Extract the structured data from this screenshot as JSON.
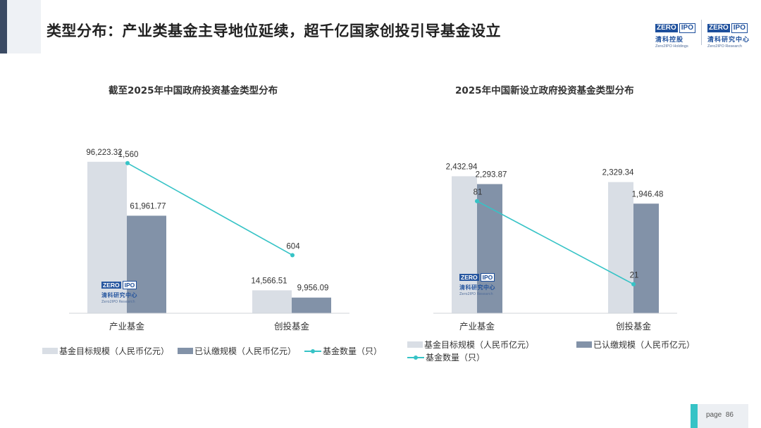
{
  "page": {
    "title": "类型分布：产业类基金主导地位延续，超千亿国家创投引导基金设立",
    "footer_label": "page",
    "page_number": "86"
  },
  "logos": {
    "holdings": {
      "zero": "ZERO",
      "ipo": "IPO",
      "cn": "清科控股",
      "en": "Zero2IPO Holdings"
    },
    "research": {
      "zero": "ZERO",
      "ipo": "IPO",
      "cn": "清科研究中心",
      "en": "Zero2IPO Research"
    }
  },
  "colors": {
    "target": "#d9dee5",
    "paid": "#8292a8",
    "count": "#36c3c6",
    "accent": "#3a4a63"
  },
  "chart_data": [
    {
      "type": "bar",
      "title": "截至2025年中国政府投资基金类型分布",
      "categories": [
        "产业基金",
        "创投基金"
      ],
      "series": [
        {
          "name": "基金目标规模（人民币亿元）",
          "values": [
            96223.32,
            14566.51
          ],
          "labels": [
            "96,223.32",
            "14,566.51"
          ]
        },
        {
          "name": "已认缴规模（人民币亿元）",
          "values": [
            61961.77,
            9956.09
          ],
          "labels": [
            "61,961.77",
            "9,956.09"
          ]
        },
        {
          "name": "基金数量（只）",
          "type": "line",
          "values": [
            1560,
            604
          ],
          "labels": [
            "1,560",
            "604"
          ]
        }
      ],
      "ylim": [
        0,
        110000
      ],
      "y2lim": [
        0,
        1800
      ],
      "legend": "bottom"
    },
    {
      "type": "bar",
      "title": "2025年中国新设立政府投资基金类型分布",
      "categories": [
        "产业基金",
        "创投基金"
      ],
      "series": [
        {
          "name": "基金目标规模（人民币亿元）",
          "values": [
            2432.94,
            2329.34
          ],
          "labels": [
            "2,432.94",
            "2,329.34"
          ]
        },
        {
          "name": "已认缴规模（人民币亿元）",
          "values": [
            2293.87,
            1946.48
          ],
          "labels": [
            "2,293.87",
            "1,946.48"
          ]
        },
        {
          "name": "基金数量（只）",
          "type": "line",
          "values": [
            81,
            21
          ],
          "labels": [
            "81",
            "21"
          ]
        }
      ],
      "ylim": [
        0,
        2950
      ],
      "y2lim": [
        0,
        120
      ],
      "legend": "bottom"
    }
  ]
}
